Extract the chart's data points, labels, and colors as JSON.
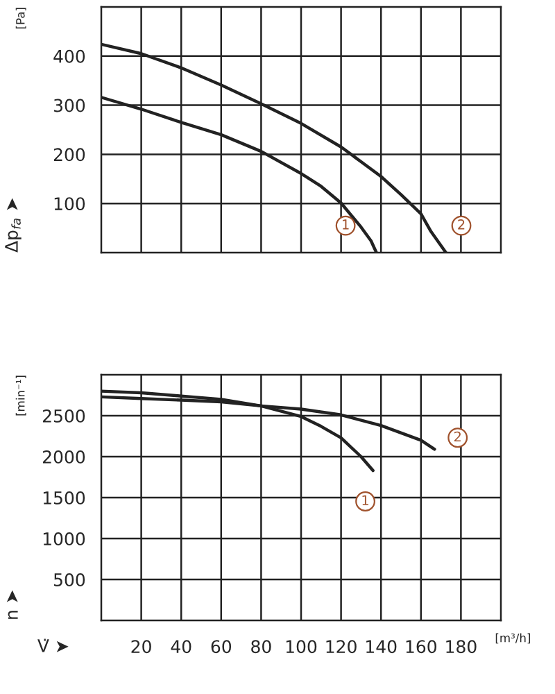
{
  "chart_data": [
    {
      "type": "line",
      "ylabel": "Δp$_{fa}$ ➤",
      "annotations": [
        "[Pa]"
      ],
      "xlim": [
        0,
        200
      ],
      "xticks": [
        20,
        40,
        60,
        80,
        100,
        120,
        140,
        160,
        180
      ],
      "ylim": [
        0,
        500
      ],
      "yticks": [
        100,
        200,
        300,
        400
      ],
      "tick_labels": "y",
      "grid": true,
      "marker": "none",
      "line_style": "solid",
      "series": [
        {
          "name": "1",
          "color": "#222222",
          "x": [
            0,
            20,
            40,
            60,
            80,
            100,
            110,
            120,
            130,
            135,
            137.7
          ],
          "values": [
            316,
            292,
            265,
            240,
            206,
            161,
            135,
            101,
            52,
            24,
            0
          ]
        },
        {
          "name": "2",
          "color": "#222222",
          "x": [
            0,
            20,
            40,
            60,
            80,
            100,
            120,
            130,
            140,
            150,
            160,
            165,
            172.5
          ],
          "values": [
            424,
            405,
            376,
            341,
            303,
            263,
            215,
            185,
            155,
            118,
            79,
            43,
            0
          ]
        }
      ]
    },
    {
      "type": "line",
      "xlabel": "V̇ ➤",
      "ylabel": "n ➤",
      "annotations": [
        "[min⁻¹]",
        "[m³/h]"
      ],
      "xlim": [
        0,
        200
      ],
      "xticks": [
        20,
        40,
        60,
        80,
        100,
        120,
        140,
        160,
        180
      ],
      "ylim": [
        0,
        3000
      ],
      "yticks": [
        500,
        1000,
        1500,
        2000,
        2500
      ],
      "grid": true,
      "marker": "none",
      "line_style": "solid",
      "series": [
        {
          "name": "1",
          "color": "#222222",
          "x": [
            0,
            20,
            40,
            60,
            80,
            100,
            110,
            120,
            130,
            136
          ],
          "values": [
            2800,
            2780,
            2740,
            2700,
            2620,
            2490,
            2370,
            2230,
            2000,
            1830
          ]
        },
        {
          "name": "2",
          "color": "#222222",
          "x": [
            0,
            20,
            40,
            60,
            80,
            100,
            120,
            140,
            160,
            166.8
          ],
          "values": [
            2730,
            2710,
            2690,
            2670,
            2620,
            2580,
            2510,
            2380,
            2200,
            2090
          ]
        }
      ]
    }
  ]
}
